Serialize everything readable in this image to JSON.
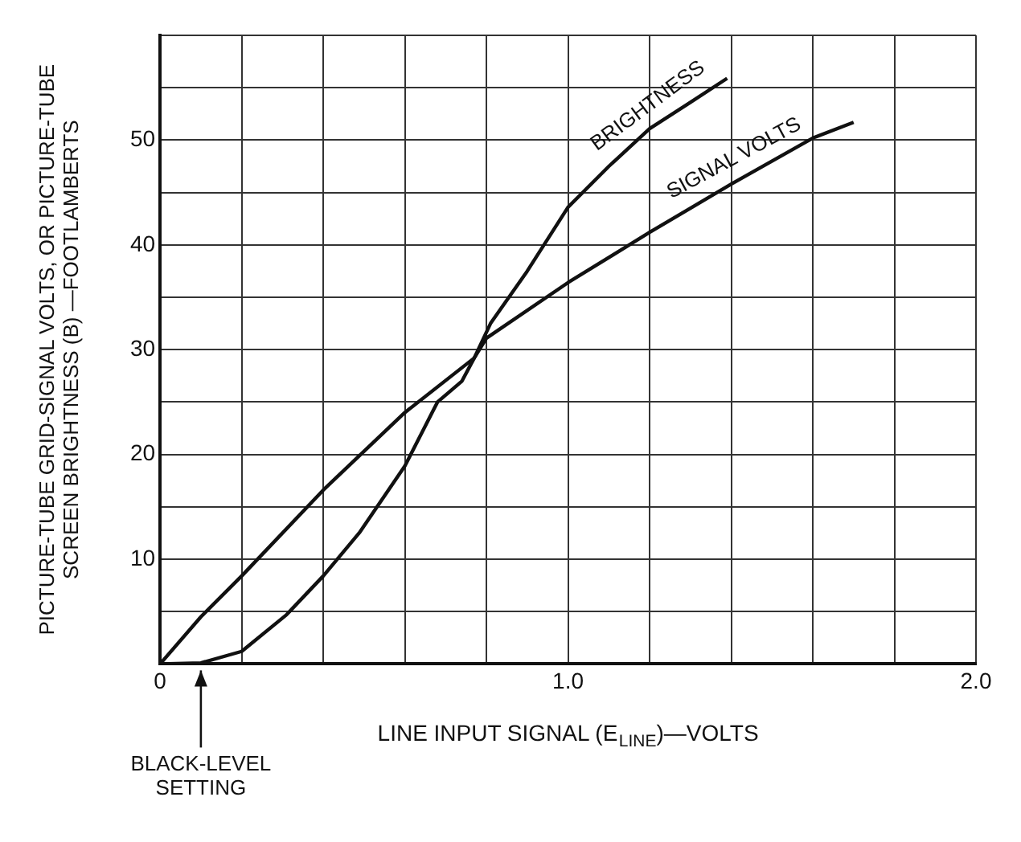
{
  "chart_data": {
    "type": "line",
    "xlabel": "LINE INPUT SIGNAL (E$_{LINE}$)—VOLTS",
    "ylabel": "PICTURE-TUBE GRID-SIGNAL VOLTS, OR PICTURE-TUBE SCREEN BRIGHTNESS (B) —FOOTLAMBERTS",
    "annotations": [
      {
        "text": "BLACK-LEVEL SETTING",
        "x": 0.1,
        "y": 0
      }
    ],
    "series": [
      {
        "name": "BRIGHTNESS",
        "color": "#111111",
        "x": [
          0,
          0.1,
          0.2,
          0.31,
          0.4,
          0.49,
          0.6,
          0.68,
          0.74,
          0.77,
          0.81,
          0.9,
          1.0,
          1.1,
          1.2,
          1.3,
          1.39
        ],
        "values": [
          0,
          0.1,
          1.2,
          4.7,
          8.4,
          12.6,
          18.9,
          25,
          27,
          29.2,
          32.5,
          37.5,
          43.6,
          47.5,
          51.1,
          53.6,
          55.9
        ]
      },
      {
        "name": "SIGNAL VOLTS",
        "color": "#111111",
        "x": [
          0,
          0.1,
          0.2,
          0.4,
          0.6,
          0.77,
          0.8,
          1.0,
          1.2,
          1.4,
          1.6,
          1.7
        ],
        "values": [
          0,
          4.5,
          8.4,
          16.6,
          24,
          29.2,
          31.1,
          36.4,
          41.2,
          45.8,
          50.2,
          51.7
        ]
      }
    ],
    "xlim": [
      0,
      2.0
    ],
    "xticks": [
      0,
      {
        "value": 0.2,
        "label": null
      },
      {
        "value": 0.4,
        "label": null
      },
      {
        "value": 0.6,
        "label": null
      },
      {
        "value": 0.8,
        "label": null
      },
      {
        "value": 1.0,
        "label": "1.0"
      },
      {
        "value": 1.2,
        "label": null
      },
      {
        "value": 1.4,
        "label": null
      },
      {
        "value": 1.6,
        "label": null
      },
      {
        "value": 1.8,
        "label": null
      },
      {
        "value": 2.0,
        "label": "2.0"
      }
    ],
    "ylim": [
      0,
      60
    ],
    "yticks": [
      {
        "value": 0,
        "label": null
      },
      {
        "value": 5,
        "label": null
      },
      10,
      {
        "value": 15,
        "label": null
      },
      20,
      {
        "value": 25,
        "label": null
      },
      30,
      {
        "value": 35,
        "label": null
      },
      40,
      {
        "value": 45,
        "label": null
      },
      50,
      {
        "value": 55,
        "label": null
      },
      {
        "value": 60,
        "label": null
      }
    ],
    "grid": true,
    "legend": false,
    "marker": "none",
    "line_style": "solid"
  }
}
